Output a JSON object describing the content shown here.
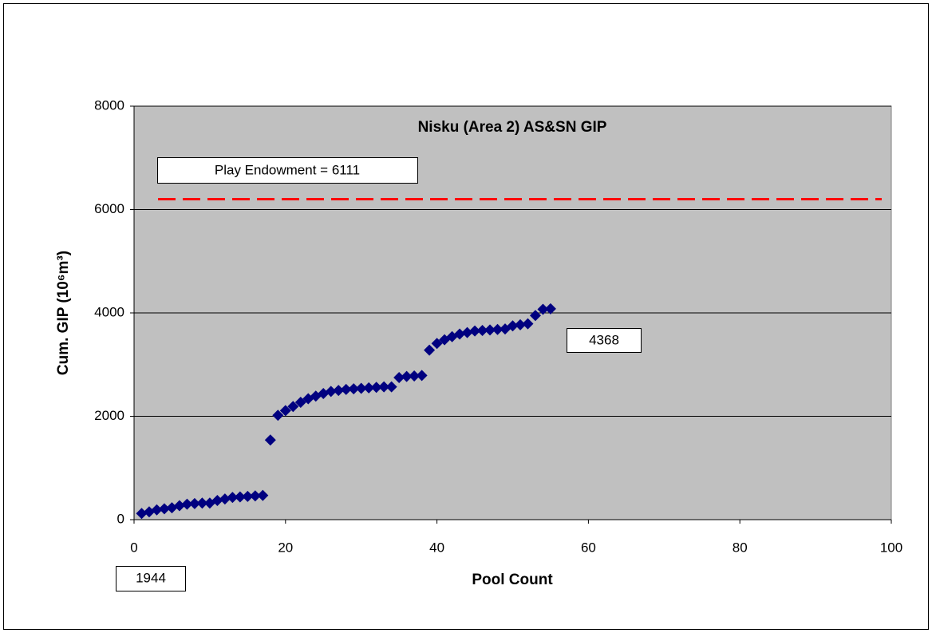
{
  "chart_data": {
    "type": "scatter",
    "title": "Nisku (Area 2) AS&SN GIP",
    "x_label": "Pool Count",
    "y_label": "Cum. GIP (10⁶m³)",
    "xlim": [
      0,
      100
    ],
    "xticks": [
      0,
      20,
      40,
      60,
      80,
      100
    ],
    "ylim": [
      0,
      8000
    ],
    "yticks": [
      0,
      2000,
      4000,
      6000,
      8000
    ],
    "grid": true,
    "series": [
      {
        "name": "Cum. GIP",
        "color": "#000080",
        "x": [
          1,
          2,
          3,
          4,
          5,
          6,
          7,
          8,
          9,
          10,
          11,
          12,
          13,
          14,
          15,
          16,
          17,
          18,
          19,
          20,
          21,
          22,
          23,
          24,
          25,
          26,
          27,
          28,
          29,
          30,
          31,
          32,
          33,
          34,
          35,
          36,
          37,
          38,
          39,
          40,
          41,
          42,
          43,
          44,
          45,
          46,
          47,
          48,
          49,
          50,
          51,
          52,
          53,
          54,
          55
        ],
        "values": [
          120,
          150,
          190,
          210,
          230,
          270,
          300,
          310,
          320,
          320,
          370,
          400,
          430,
          440,
          450,
          460,
          470,
          1540,
          2020,
          2110,
          2190,
          2270,
          2340,
          2390,
          2440,
          2480,
          2500,
          2520,
          2530,
          2540,
          2550,
          2560,
          2570,
          2570,
          2750,
          2770,
          2780,
          2790,
          3280,
          3410,
          3480,
          3540,
          3590,
          3620,
          3650,
          3660,
          3670,
          3680,
          3690,
          3750,
          3770,
          3790,
          3950,
          4070,
          4080
        ]
      }
    ],
    "reference_line": {
      "value": 6200,
      "color": "#ff0000"
    },
    "annotations": [
      "Play Endowment  = 6111",
      "4368",
      "1944"
    ]
  }
}
